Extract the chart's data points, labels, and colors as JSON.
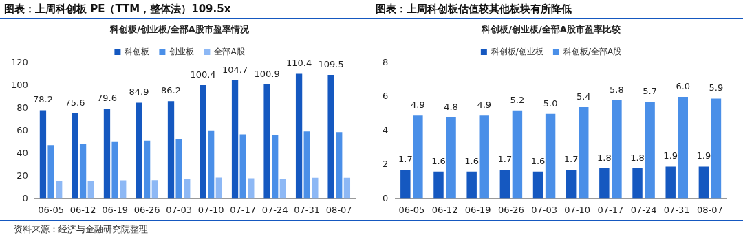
{
  "chart_data": [
    {
      "type": "bar",
      "title": "图表：上周科创板 PE（TTM，整体法）109.5x",
      "subtitle": "科创板/创业板/全部A股市盈率情况",
      "categories": [
        "06-05",
        "06-12",
        "06-19",
        "06-26",
        "07-03",
        "07-10",
        "07-17",
        "07-24",
        "07-31",
        "08-07"
      ],
      "series": [
        {
          "name": "科创板",
          "color": "#1558c0",
          "values": [
            78.2,
            75.6,
            79.6,
            84.9,
            86.2,
            100.4,
            104.7,
            100.9,
            110.4,
            109.5
          ],
          "value_labels": [
            "78.2",
            "75.6",
            "79.6",
            "84.9",
            "86.2",
            "100.4",
            "104.7",
            "100.9",
            "110.4",
            "109.5"
          ]
        },
        {
          "name": "创业板",
          "color": "#4a8fe8",
          "values": [
            47.4,
            48.3,
            50.2,
            51.3,
            52.6,
            59.9,
            56.9,
            56.3,
            59.5,
            58.9
          ]
        },
        {
          "name": "全部A股",
          "color": "#8db8f5",
          "values": [
            15.9,
            15.9,
            16.3,
            16.5,
            17.5,
            18.7,
            18.1,
            17.8,
            18.6,
            18.6
          ]
        }
      ],
      "ylim": [
        0,
        120
      ],
      "yticks": [
        0,
        20,
        40,
        60,
        80,
        100,
        120
      ],
      "grid": false,
      "legend": "top",
      "annotations": [
        "资料来源：经济与金融研究院整理"
      ]
    },
    {
      "type": "bar",
      "title": "图表：上周科创板估值较其他板块有所降低",
      "subtitle": "科创板/创业板/全部A股市盈率比较",
      "categories": [
        "06-05",
        "06-12",
        "06-19",
        "06-26",
        "07-03",
        "07-10",
        "07-17",
        "07-24",
        "07-31",
        "08-07"
      ],
      "series": [
        {
          "name": "科创板/创业板",
          "color": "#1558c0",
          "values": [
            1.7,
            1.6,
            1.6,
            1.7,
            1.6,
            1.7,
            1.8,
            1.8,
            1.9,
            1.9
          ],
          "value_labels": [
            "1.7",
            "1.6",
            "1.6",
            "1.7",
            "1.6",
            "1.7",
            "1.8",
            "1.8",
            "1.9",
            "1.9"
          ]
        },
        {
          "name": "科创板/全部A股",
          "color": "#4a8fe8",
          "values": [
            4.9,
            4.8,
            4.9,
            5.2,
            5.0,
            5.4,
            5.8,
            5.7,
            6.0,
            5.9
          ],
          "value_labels": [
            "4.9",
            "4.8",
            "4.9",
            "5.2",
            "5.0",
            "5.4",
            "5.8",
            "5.7",
            "6.0",
            "5.9"
          ]
        }
      ],
      "ylim": [
        0,
        8
      ],
      "yticks": [
        0,
        2,
        4,
        6,
        8
      ],
      "grid": false,
      "legend": "top"
    }
  ]
}
